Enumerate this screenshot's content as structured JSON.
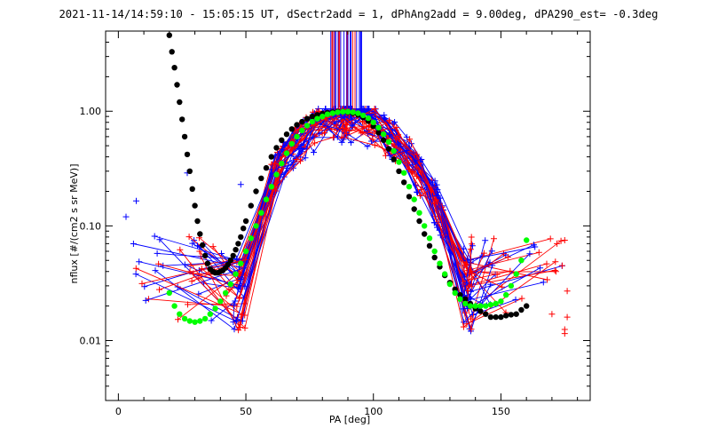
{
  "chart_data": {
    "type": "scatter",
    "title": "2021-11-14/14:59:10 - 15:05:15 UT, dSectr2add = 1, dPhAng2add = 9.00deg, dPA290_est=  -0.3deg",
    "xlabel": "PA [deg]",
    "ylabel": "nflux [#/(cm2 s sr MeV)]",
    "x_ticks": [
      "0",
      "50",
      "100",
      "150"
    ],
    "y_ticks": [
      "0.01",
      "0.10",
      "1.00"
    ],
    "xlim": [
      -5,
      185
    ],
    "ylim": [
      0.003,
      5
    ],
    "y_scale": "log",
    "colors": {
      "blue": "#0000ff",
      "red": "#ff0000",
      "black": "#000000",
      "green": "#00ff00"
    },
    "series": [
      {
        "color": "black",
        "style": "dots",
        "x": [
          20,
          21,
          22,
          23,
          24,
          25,
          26,
          27,
          28,
          29,
          30,
          31,
          32,
          33,
          34,
          35,
          36,
          37,
          38,
          39,
          40,
          41,
          42,
          43,
          44,
          45,
          46,
          47,
          48,
          49,
          50,
          52,
          54,
          56,
          58,
          60,
          62,
          64,
          66,
          68,
          70,
          72,
          74,
          76,
          78,
          80,
          82,
          84,
          86,
          88,
          90,
          92,
          94,
          96,
          98,
          100,
          102,
          104,
          106,
          108,
          110,
          112,
          114,
          116,
          118,
          120,
          122,
          124,
          126,
          128,
          130,
          132,
          134,
          136,
          138,
          140,
          142,
          144,
          146,
          148,
          150,
          152,
          154,
          156,
          158,
          160
        ],
        "y": [
          4.6,
          3.3,
          2.4,
          1.7,
          1.2,
          0.85,
          0.6,
          0.42,
          0.3,
          0.21,
          0.15,
          0.11,
          0.085,
          0.068,
          0.055,
          0.047,
          0.042,
          0.04,
          0.039,
          0.039,
          0.04,
          0.041,
          0.043,
          0.046,
          0.05,
          0.055,
          0.062,
          0.07,
          0.08,
          0.095,
          0.11,
          0.15,
          0.2,
          0.26,
          0.32,
          0.4,
          0.48,
          0.56,
          0.63,
          0.7,
          0.76,
          0.81,
          0.86,
          0.9,
          0.93,
          0.95,
          0.97,
          0.98,
          0.99,
          0.99,
          0.98,
          0.96,
          0.93,
          0.88,
          0.82,
          0.74,
          0.65,
          0.56,
          0.47,
          0.38,
          0.3,
          0.24,
          0.18,
          0.14,
          0.11,
          0.085,
          0.067,
          0.053,
          0.044,
          0.037,
          0.032,
          0.028,
          0.025,
          0.023,
          0.021,
          0.019,
          0.018,
          0.017,
          0.016,
          0.016,
          0.016,
          0.0165,
          0.0168,
          0.017,
          0.0185,
          0.02
        ]
      },
      {
        "color": "green",
        "style": "dots",
        "x": [
          20,
          22,
          24,
          26,
          28,
          30,
          32,
          34,
          36,
          38,
          40,
          42,
          44,
          46,
          48,
          50,
          52,
          54,
          56,
          58,
          60,
          62,
          64,
          66,
          68,
          70,
          72,
          74,
          76,
          78,
          80,
          82,
          84,
          86,
          88,
          90,
          92,
          94,
          96,
          98,
          100,
          102,
          104,
          106,
          108,
          110,
          112,
          114,
          116,
          118,
          120,
          122,
          124,
          126,
          128,
          130,
          132,
          134,
          136,
          138,
          140,
          142,
          144,
          146,
          148,
          150,
          152,
          154,
          156,
          158,
          160
        ],
        "y": [
          0.026,
          0.02,
          0.017,
          0.0155,
          0.0148,
          0.0145,
          0.0148,
          0.0155,
          0.017,
          0.019,
          0.022,
          0.026,
          0.031,
          0.038,
          0.047,
          0.06,
          0.078,
          0.1,
          0.13,
          0.17,
          0.22,
          0.28,
          0.35,
          0.43,
          0.52,
          0.6,
          0.68,
          0.75,
          0.81,
          0.86,
          0.9,
          0.94,
          0.96,
          0.98,
          0.99,
          0.99,
          0.98,
          0.96,
          0.92,
          0.87,
          0.8,
          0.72,
          0.63,
          0.54,
          0.45,
          0.36,
          0.29,
          0.22,
          0.17,
          0.13,
          0.1,
          0.078,
          0.06,
          0.047,
          0.038,
          0.031,
          0.026,
          0.023,
          0.021,
          0.02,
          0.02,
          0.02,
          0.02,
          0.0205,
          0.021,
          0.022,
          0.025,
          0.03,
          0.038,
          0.05,
          0.075
        ]
      }
    ]
  }
}
